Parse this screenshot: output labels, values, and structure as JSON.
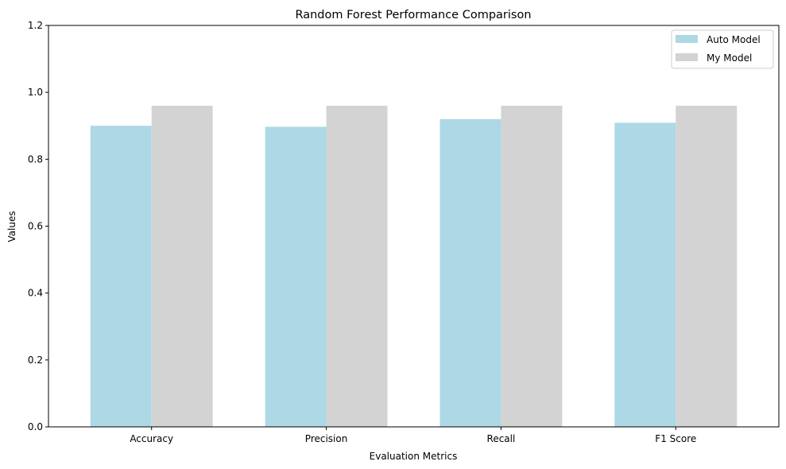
{
  "chart_data": {
    "type": "bar",
    "title": "Random Forest Performance Comparison",
    "xlabel": "Evaluation Metrics",
    "ylabel": "Values",
    "categories": [
      "Accuracy",
      "Precision",
      "Recall",
      "F1 Score"
    ],
    "series": [
      {
        "name": "Auto Model",
        "color": "#add8e6",
        "values": [
          0.9,
          0.897,
          0.92,
          0.909
        ]
      },
      {
        "name": "My Model",
        "color": "#d3d3d3",
        "values": [
          0.96,
          0.96,
          0.96,
          0.96
        ]
      }
    ],
    "ylim": [
      0,
      1.2
    ],
    "yticks": [
      "0.0",
      "0.2",
      "0.4",
      "0.6",
      "0.8",
      "1.0",
      "1.2"
    ],
    "grid": false,
    "legend_position": "top-right"
  }
}
